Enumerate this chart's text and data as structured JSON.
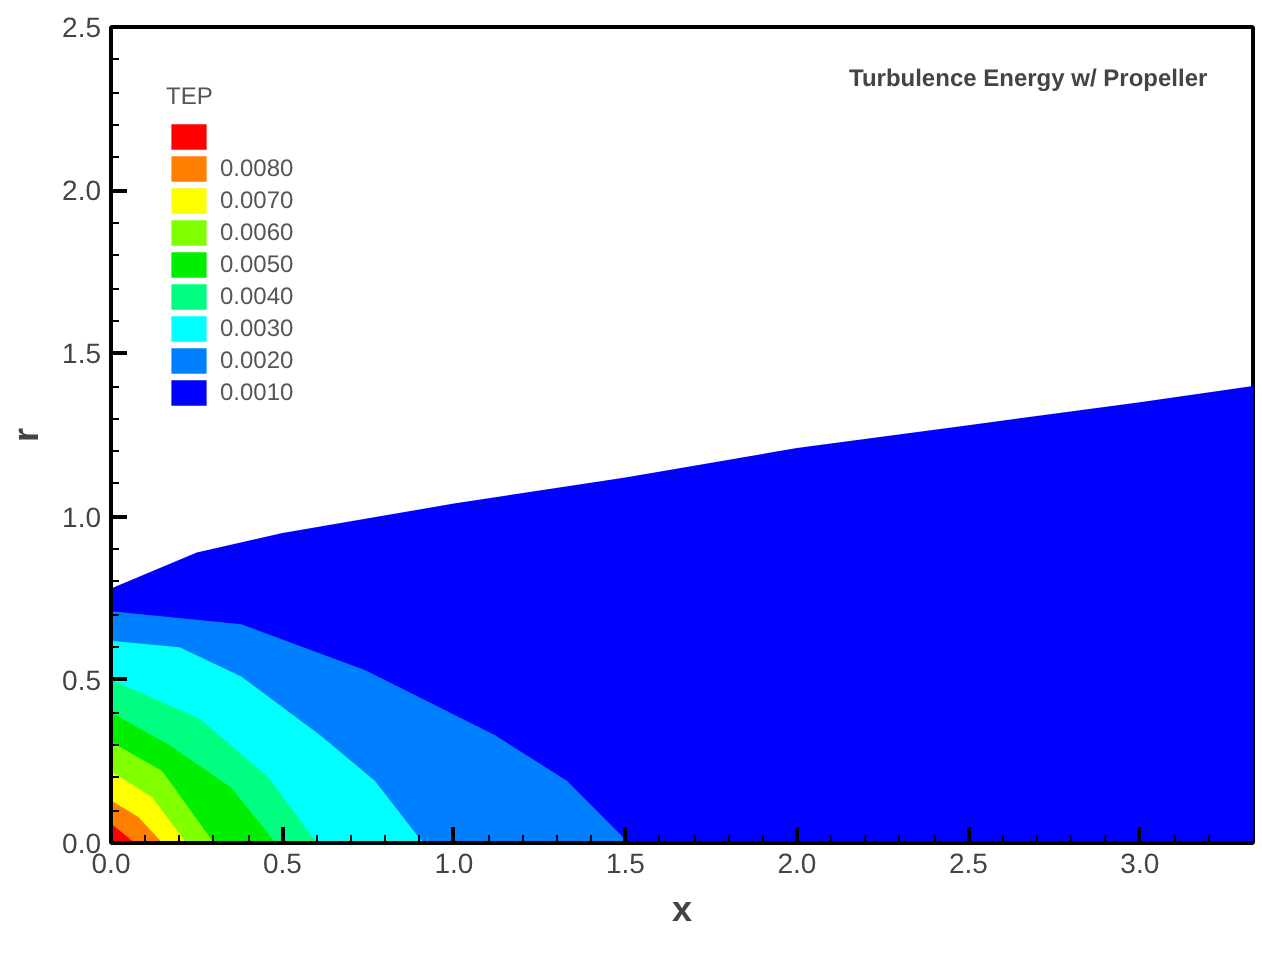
{
  "chart_data": {
    "type": "area",
    "title": "Turbulence Energy w/ Propeller",
    "xlabel": "x",
    "ylabel": "r",
    "legend_title": "TEP",
    "legend": "top left",
    "grid": false,
    "xlim": [
      0,
      3.33
    ],
    "ylim": [
      0,
      2.5
    ],
    "xticks": [
      {
        "value": 0,
        "label": "0.0"
      },
      {
        "value": 0.5,
        "label": "0.5"
      },
      {
        "value": 1,
        "label": "1.0"
      },
      {
        "value": 1.5,
        "label": "1.5"
      },
      {
        "value": 2,
        "label": "2.0"
      },
      {
        "value": 2.5,
        "label": "2.5"
      },
      {
        "value": 3,
        "label": "3.0"
      },
      {
        "value": 0.1,
        "label": null
      },
      {
        "value": 0.2,
        "label": null
      },
      {
        "value": 0.3,
        "label": null
      },
      {
        "value": 0.4,
        "label": null
      },
      {
        "value": 0.6,
        "label": null
      },
      {
        "value": 0.7,
        "label": null
      },
      {
        "value": 0.8,
        "label": null
      },
      {
        "value": 0.9,
        "label": null
      },
      {
        "value": 1.1,
        "label": null
      },
      {
        "value": 1.2,
        "label": null
      },
      {
        "value": 1.3,
        "label": null
      },
      {
        "value": 1.4,
        "label": null
      },
      {
        "value": 1.6,
        "label": null
      },
      {
        "value": 1.7,
        "label": null
      },
      {
        "value": 1.8,
        "label": null
      },
      {
        "value": 1.9,
        "label": null
      },
      {
        "value": 2.1,
        "label": null
      },
      {
        "value": 2.2,
        "label": null
      },
      {
        "value": 2.3,
        "label": null
      },
      {
        "value": 2.4,
        "label": null
      },
      {
        "value": 2.6,
        "label": null
      },
      {
        "value": 2.7,
        "label": null
      },
      {
        "value": 2.8,
        "label": null
      },
      {
        "value": 2.9,
        "label": null
      },
      {
        "value": 3.1,
        "label": null
      },
      {
        "value": 3.2,
        "label": null
      }
    ],
    "yticks": [
      {
        "value": 0,
        "label": "0.0"
      },
      {
        "value": 0.5,
        "label": "0.5"
      },
      {
        "value": 1,
        "label": "1.0"
      },
      {
        "value": 1.5,
        "label": "1.5"
      },
      {
        "value": 2,
        "label": "2.0"
      },
      {
        "value": 2.5,
        "label": "2.5"
      },
      {
        "value": 0.1,
        "label": null
      },
      {
        "value": 0.2,
        "label": null
      },
      {
        "value": 0.3,
        "label": null
      },
      {
        "value": 0.4,
        "label": null
      },
      {
        "value": 0.6,
        "label": null
      },
      {
        "value": 0.7,
        "label": null
      },
      {
        "value": 0.8,
        "label": null
      },
      {
        "value": 0.9,
        "label": null
      },
      {
        "value": 1.1,
        "label": null
      },
      {
        "value": 1.2,
        "label": null
      },
      {
        "value": 1.3,
        "label": null
      },
      {
        "value": 1.4,
        "label": null
      },
      {
        "value": 1.6,
        "label": null
      },
      {
        "value": 1.7,
        "label": null
      },
      {
        "value": 1.8,
        "label": null
      },
      {
        "value": 1.9,
        "label": null
      },
      {
        "value": 2.1,
        "label": null
      },
      {
        "value": 2.2,
        "label": null
      },
      {
        "value": 2.3,
        "label": null
      },
      {
        "value": 2.4,
        "label": null
      }
    ],
    "series": [
      {
        "name": "0.0010",
        "color": "#0000ff",
        "x": [
          0,
          0.25,
          0.5,
          1.0,
          1.5,
          2.0,
          2.5,
          3.0,
          3.33
        ],
        "values": [
          0.78,
          0.89,
          0.95,
          1.04,
          1.12,
          1.21,
          1.28,
          1.35,
          1.4
        ]
      },
      {
        "name": "0.0020",
        "color": "#0080ff",
        "x": [
          0,
          0.38,
          0.74,
          1.12,
          1.33,
          1.51
        ],
        "values": [
          0.71,
          0.67,
          0.53,
          0.33,
          0.19,
          0
        ]
      },
      {
        "name": "0.0030",
        "color": "#00ffff",
        "x": [
          0,
          0.2,
          0.38,
          0.61,
          0.77,
          0.91
        ],
        "values": [
          0.62,
          0.6,
          0.51,
          0.33,
          0.19,
          0
        ]
      },
      {
        "name": "0.0040",
        "color": "#00ff80",
        "x": [
          0,
          0.26,
          0.46,
          0.6
        ],
        "values": [
          0.5,
          0.38,
          0.2,
          0
        ]
      },
      {
        "name": "0.0050",
        "color": "#00ee00",
        "x": [
          0,
          0.17,
          0.35,
          0.48
        ],
        "values": [
          0.4,
          0.3,
          0.17,
          0
        ]
      },
      {
        "name": "0.0060",
        "color": "#80ff00",
        "x": [
          0,
          0.15,
          0.3
        ],
        "values": [
          0.31,
          0.22,
          0
        ]
      },
      {
        "name": "0.0070",
        "color": "#ffff00",
        "x": [
          0,
          0.12,
          0.22
        ],
        "values": [
          0.22,
          0.14,
          0
        ]
      },
      {
        "name": "0.0080",
        "color": "#ff8000",
        "x": [
          0,
          0.08,
          0.15
        ],
        "values": [
          0.13,
          0.08,
          0
        ]
      },
      {
        "color": "#ff0000",
        "x": [
          0,
          0.07
        ],
        "values": [
          0.06,
          0
        ]
      }
    ]
  }
}
